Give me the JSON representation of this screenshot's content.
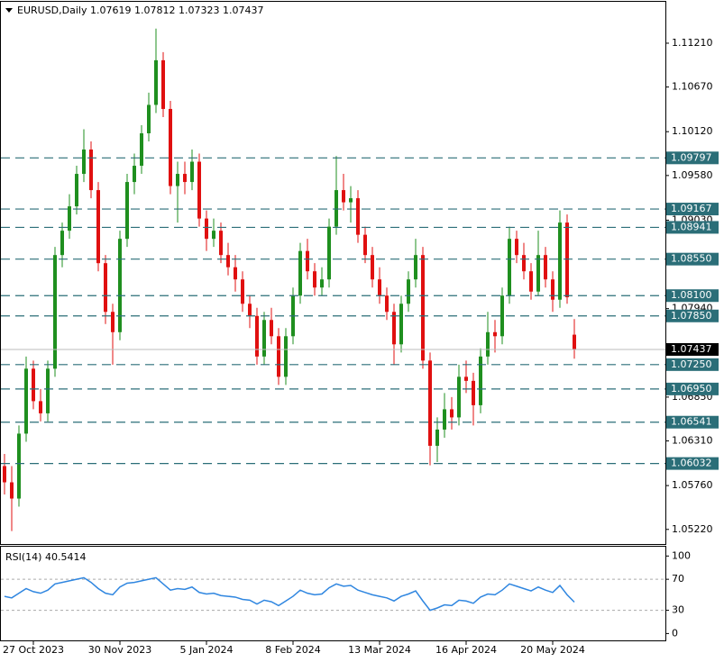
{
  "chart_data": {
    "type": "candlestick",
    "symbol": "EURUSD,Daily",
    "bull_color": "#1f8f1f",
    "bear_color": "#e01010",
    "level_color": "#2b6e78",
    "ylim": [
      1.0504,
      1.1172
    ],
    "yticks": [
      {
        "value": 1.1121,
        "label": "1.11210"
      },
      {
        "value": 1.1067,
        "label": "1.10670"
      },
      {
        "value": 1.1012,
        "label": "1.10120"
      },
      {
        "value": 1.0958,
        "label": "1.09580"
      },
      {
        "value": 1.0903,
        "label": "1.09030"
      },
      {
        "value": 1.0794,
        "label": "1.07940"
      },
      {
        "value": 1.0685,
        "label": "1.06850"
      },
      {
        "value": 1.0631,
        "label": "1.06310"
      },
      {
        "value": 1.0576,
        "label": "1.05760"
      },
      {
        "value": 1.0522,
        "label": "1.05220"
      }
    ],
    "levels": [
      1.09797,
      1.09167,
      1.08941,
      {
        "value": 1.0855,
        "label": "1.08550"
      },
      {
        "value": 1.081,
        "label": "1.08100"
      },
      {
        "value": 1.0785,
        "label": "1.07850"
      },
      {
        "value": 1.0725,
        "label": "1.07250"
      },
      {
        "value": 1.0695,
        "label": "1.06950"
      },
      1.06541,
      1.06032
    ],
    "categories": [
      null,
      null,
      null,
      null,
      "27 Oct 2023",
      null,
      null,
      null,
      null,
      null,
      null,
      null,
      null,
      null,
      null,
      null,
      "30 Nov 2023",
      null,
      null,
      null,
      null,
      null,
      null,
      null,
      null,
      null,
      null,
      null,
      "5 Jan 2024",
      null,
      null,
      null,
      null,
      null,
      null,
      null,
      null,
      null,
      null,
      null,
      "8 Feb 2024",
      null,
      null,
      null,
      null,
      null,
      null,
      null,
      null,
      null,
      null,
      null,
      "13 Mar 2024",
      null,
      null,
      null,
      null,
      null,
      null,
      null,
      null,
      null,
      null,
      null,
      "16 Apr 2024",
      null,
      null,
      null,
      null,
      null,
      null,
      null,
      null,
      null,
      null,
      null,
      "20 May 2024",
      null,
      null,
      null
    ],
    "candles": [
      [
        1.06,
        1.0615,
        1.0565,
        1.058
      ],
      [
        1.058,
        1.06,
        1.052,
        1.056
      ],
      [
        1.056,
        1.065,
        1.055,
        1.064
      ],
      [
        1.064,
        1.0735,
        1.063,
        1.072
      ],
      [
        1.072,
        1.073,
        1.067,
        1.068
      ],
      [
        1.068,
        1.0695,
        1.0655,
        1.0665
      ],
      [
        1.0665,
        1.073,
        1.0655,
        1.072
      ],
      [
        1.072,
        1.087,
        1.071,
        1.086
      ],
      [
        1.086,
        1.09,
        1.0845,
        1.089
      ],
      [
        1.089,
        1.0935,
        1.088,
        1.092
      ],
      [
        1.092,
        1.097,
        1.091,
        1.096
      ],
      [
        1.096,
        1.1015,
        1.095,
        1.099
      ],
      [
        1.099,
        1.1,
        1.093,
        1.094
      ],
      [
        1.094,
        1.095,
        1.084,
        1.085
      ],
      [
        1.085,
        1.086,
        1.0775,
        1.079
      ],
      [
        1.079,
        1.08,
        1.0725,
        1.0765
      ],
      [
        1.0765,
        1.089,
        1.0755,
        1.088
      ],
      [
        1.088,
        1.096,
        1.087,
        1.095
      ],
      [
        1.095,
        1.0985,
        1.0935,
        1.097
      ],
      [
        1.097,
        1.102,
        1.096,
        1.101
      ],
      [
        1.101,
        1.106,
        1.1,
        1.1045
      ],
      [
        1.1045,
        1.1139,
        1.1035,
        1.11
      ],
      [
        1.11,
        1.111,
        1.103,
        1.104
      ],
      [
        1.104,
        1.105,
        1.0935,
        1.0945
      ],
      [
        1.0945,
        1.0975,
        1.09,
        1.096
      ],
      [
        1.096,
        1.0975,
        1.0935,
        1.095
      ],
      [
        1.095,
        1.099,
        1.094,
        1.0975
      ],
      [
        1.0975,
        1.0985,
        1.0895,
        1.0905
      ],
      [
        1.0905,
        1.0915,
        1.0865,
        1.088
      ],
      [
        1.088,
        1.0905,
        1.087,
        1.089
      ],
      [
        1.089,
        1.09,
        1.085,
        1.086
      ],
      [
        1.086,
        1.0875,
        1.0835,
        1.0845
      ],
      [
        1.0845,
        1.086,
        1.0815,
        1.083
      ],
      [
        1.083,
        1.084,
        1.079,
        1.08
      ],
      [
        1.08,
        1.081,
        1.077,
        1.0785
      ],
      [
        1.0785,
        1.0795,
        1.0725,
        1.0735
      ],
      [
        1.0735,
        1.079,
        1.0725,
        1.078
      ],
      [
        1.078,
        1.0795,
        1.075,
        1.076
      ],
      [
        1.076,
        1.077,
        1.07,
        1.071
      ],
      [
        1.071,
        1.077,
        1.07,
        1.076
      ],
      [
        1.076,
        1.082,
        1.075,
        1.081
      ],
      [
        1.081,
        1.0875,
        1.08,
        1.0865
      ],
      [
        1.0865,
        1.088,
        1.083,
        1.084
      ],
      [
        1.084,
        1.085,
        1.081,
        1.082
      ],
      [
        1.082,
        1.0845,
        1.081,
        1.083
      ],
      [
        1.083,
        1.0905,
        1.082,
        1.0895
      ],
      [
        1.0895,
        1.0982,
        1.0885,
        1.094
      ],
      [
        1.094,
        1.096,
        1.0915,
        1.0925
      ],
      [
        1.0925,
        1.0945,
        1.09,
        1.093
      ],
      [
        1.093,
        1.094,
        1.0875,
        1.0885
      ],
      [
        1.0885,
        1.0895,
        1.085,
        1.086
      ],
      [
        1.086,
        1.087,
        1.082,
        1.083
      ],
      [
        1.083,
        1.0845,
        1.08,
        1.081
      ],
      [
        1.081,
        1.082,
        1.078,
        1.079
      ],
      [
        1.079,
        1.08,
        1.0725,
        1.075
      ],
      [
        1.075,
        1.081,
        1.074,
        1.08
      ],
      [
        1.08,
        1.084,
        1.079,
        1.083
      ],
      [
        1.083,
        1.088,
        1.082,
        1.086
      ],
      [
        1.086,
        1.087,
        1.072,
        1.073
      ],
      [
        1.073,
        1.074,
        1.0601,
        1.0625
      ],
      [
        1.0625,
        1.066,
        1.0605,
        1.0645
      ],
      [
        1.0645,
        1.069,
        1.0635,
        1.067
      ],
      [
        1.067,
        1.0685,
        1.0645,
        1.066
      ],
      [
        1.066,
        1.0725,
        1.065,
        1.071
      ],
      [
        1.071,
        1.073,
        1.069,
        1.0705
      ],
      [
        1.0705,
        1.0715,
        1.065,
        1.0675
      ],
      [
        1.0675,
        1.0745,
        1.0665,
        1.0735
      ],
      [
        1.0735,
        1.079,
        1.0725,
        1.0765
      ],
      [
        1.0765,
        1.078,
        1.074,
        1.076
      ],
      [
        1.076,
        1.082,
        1.075,
        1.081
      ],
      [
        1.081,
        1.0895,
        1.08,
        1.088
      ],
      [
        1.088,
        1.089,
        1.085,
        1.086
      ],
      [
        1.086,
        1.0875,
        1.083,
        1.084
      ],
      [
        1.084,
        1.085,
        1.0805,
        1.0815
      ],
      [
        1.0815,
        1.089,
        1.081,
        1.086
      ],
      [
        1.086,
        1.087,
        1.082,
        1.083
      ],
      [
        1.083,
        1.084,
        1.079,
        1.0805
      ],
      [
        1.0805,
        1.0915,
        1.0795,
        1.09
      ],
      [
        1.09,
        1.091,
        1.08,
        1.0808
      ],
      [
        1.07619,
        1.07812,
        1.07323,
        1.07437
      ]
    ],
    "rsi_label": "RSI(14)",
    "rsi_color": "#2f86e0",
    "rsi": [
      48,
      46,
      52,
      58,
      54,
      52,
      56,
      64,
      66,
      68,
      70,
      72,
      66,
      58,
      52,
      50,
      60,
      65,
      66,
      68,
      70,
      72,
      64,
      56,
      58,
      57,
      60,
      53,
      51,
      52,
      49,
      48,
      47,
      44,
      43,
      38,
      43,
      41,
      36,
      42,
      48,
      56,
      52,
      50,
      51,
      59,
      64,
      61,
      62,
      56,
      53,
      50,
      48,
      46,
      42,
      48,
      51,
      55,
      42,
      30,
      33,
      37,
      36,
      43,
      42,
      39,
      47,
      51,
      50,
      56,
      64,
      61,
      58,
      55,
      60,
      56,
      53,
      62,
      50,
      40.5414
    ],
    "rsi_ylim": [
      -10,
      112
    ],
    "rsi_yticks": [
      100,
      70,
      30,
      0
    ],
    "rsi_levels": [
      70,
      30
    ]
  }
}
